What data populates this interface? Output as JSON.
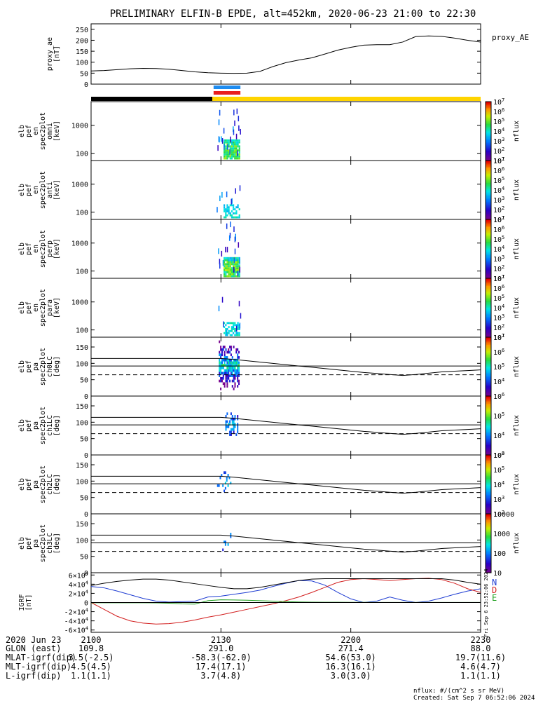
{
  "title": "PRELIMINARY ELFIN-B EPDE, alt=452km, 2020-06-23 21:00 to 22:30",
  "colors": {
    "axis": "#000000",
    "ae_line": "#000000",
    "bar_black": "#000000",
    "bar_yellow": "#ffd400",
    "science_blue": "#1e8cf0",
    "science_red": "#e8201e",
    "grf_n": "#1e3cd2",
    "grf_d": "#d21e1e",
    "grf_e": "#1ea01e",
    "grf_total": "#000000"
  },
  "chart_data": [
    {
      "id": "proxy_ae",
      "type": "line",
      "ylabel_lines": [
        "proxy_ae",
        "[nT]"
      ],
      "legend": "proxy_AE",
      "ylim": [
        0,
        275
      ],
      "yticks": [
        "0",
        "50",
        "100",
        "150",
        "200",
        "250"
      ],
      "x": [
        0,
        3,
        6,
        9,
        12,
        15,
        18,
        21,
        24,
        27,
        30,
        33,
        36,
        39,
        42,
        45,
        48,
        51,
        54,
        57,
        60,
        63,
        66,
        69,
        72,
        75,
        78,
        81,
        84,
        87,
        90
      ],
      "values": [
        60,
        62,
        66,
        70,
        72,
        71,
        68,
        62,
        56,
        52,
        50,
        49,
        50,
        58,
        80,
        98,
        110,
        120,
        137,
        155,
        168,
        178,
        180,
        180,
        192,
        217,
        220,
        218,
        210,
        200,
        192
      ]
    },
    {
      "id": "orbit_bar",
      "type": "bar",
      "segments": [
        {
          "name": "night",
          "start": 0,
          "end": 28,
          "color": "#000000"
        },
        {
          "name": "day",
          "start": 28,
          "end": 90,
          "color": "#ffd400"
        }
      ],
      "science_zone": {
        "start": 28.3,
        "end": 34.5
      }
    },
    {
      "id": "pef_en_omni",
      "type": "heatmap",
      "ylabel_lines": [
        "elb",
        "pef",
        "en",
        "spec2plot",
        "omni",
        "[keV]"
      ],
      "yscale": "log",
      "ylim": [
        55,
        7000
      ],
      "yticks": [
        "100",
        "1000"
      ],
      "colorbar": {
        "label": "nflux",
        "scale": "log",
        "range": [
          10,
          10000000
        ],
        "ticks": [
          "10^1",
          "10^2",
          "10^3",
          "10^4",
          "10^5",
          "10^6",
          "10^7"
        ]
      }
    },
    {
      "id": "pef_en_anti",
      "type": "heatmap",
      "ylabel_lines": [
        "elb",
        "pef",
        "en",
        "spec2plot",
        "anti",
        "[keV]"
      ],
      "yscale": "log",
      "ylim": [
        55,
        7000
      ],
      "yticks": [
        "100",
        "1000"
      ],
      "colorbar": {
        "label": "nflux",
        "scale": "log",
        "range": [
          10,
          10000000
        ],
        "ticks": [
          "10^1",
          "10^2",
          "10^3",
          "10^4",
          "10^5",
          "10^6",
          "10^7"
        ]
      }
    },
    {
      "id": "pef_en_perp",
      "type": "heatmap",
      "ylabel_lines": [
        "elb",
        "pef",
        "en",
        "spec2plot",
        "perp",
        "[keV]"
      ],
      "yscale": "log",
      "ylim": [
        55,
        7000
      ],
      "yticks": [
        "100",
        "1000"
      ],
      "colorbar": {
        "label": "nflux",
        "scale": "log",
        "range": [
          10,
          10000000
        ],
        "ticks": [
          "10^1",
          "10^2",
          "10^3",
          "10^4",
          "10^5",
          "10^6",
          "10^7"
        ]
      }
    },
    {
      "id": "pef_en_para",
      "type": "heatmap",
      "ylabel_lines": [
        "elb",
        "pef",
        "en",
        "spec2plot",
        "para",
        "[keV]"
      ],
      "yscale": "log",
      "ylim": [
        55,
        7000
      ],
      "yticks": [
        "100",
        "1000"
      ],
      "colorbar": {
        "label": "nflux",
        "scale": "log",
        "range": [
          10,
          10000000
        ],
        "ticks": [
          "10^1",
          "10^2",
          "10^3",
          "10^4",
          "10^5",
          "10^6",
          "10^7"
        ]
      }
    },
    {
      "id": "pef_pa_ch0",
      "type": "heatmap",
      "ylabel_lines": [
        "elb",
        "pef",
        "pa",
        "spec2plot",
        "ch0LC",
        "[deg]"
      ],
      "ylim": [
        0,
        180
      ],
      "yticks": [
        "0",
        "50",
        "100",
        "150"
      ],
      "colorbar": {
        "label": "nflux",
        "scale": "log",
        "range": [
          1000,
          10000000
        ],
        "ticks": [
          "10^4",
          "10^5",
          "10^6",
          "10^7"
        ]
      }
    },
    {
      "id": "pef_pa_ch1",
      "type": "heatmap",
      "ylabel_lines": [
        "elb",
        "pef",
        "pa",
        "spec2plot",
        "ch1LC",
        "[deg]"
      ],
      "ylim": [
        0,
        180
      ],
      "yticks": [
        "0",
        "50",
        "100",
        "150"
      ],
      "colorbar": {
        "label": "nflux",
        "scale": "log",
        "range": [
          1000,
          1000000
        ],
        "ticks": [
          "10^3",
          "10^4",
          "10^5",
          "10^6"
        ]
      }
    },
    {
      "id": "pef_pa_ch2",
      "type": "heatmap",
      "ylabel_lines": [
        "elb",
        "pef",
        "pa",
        "spec2plot",
        "ch2LC",
        "[deg]"
      ],
      "ylim": [
        0,
        180
      ],
      "yticks": [
        "0",
        "50",
        "100",
        "150"
      ],
      "colorbar": {
        "label": "nflux",
        "scale": "log",
        "range": [
          100,
          1000000
        ],
        "ticks": [
          "10^2",
          "10^3",
          "10^4",
          "10^5",
          "10^6"
        ]
      }
    },
    {
      "id": "pef_pa_ch3",
      "type": "heatmap",
      "ylabel_lines": [
        "elb",
        "pef",
        "pa",
        "spec2plot",
        "ch3LC",
        "[deg]"
      ],
      "ylim": [
        0,
        180
      ],
      "yticks": [
        "0",
        "50",
        "100",
        "150"
      ],
      "colorbar": {
        "label": "nflux",
        "scale": "log",
        "range": [
          10,
          10000
        ],
        "ticks": [
          "10",
          "100",
          "1000",
          "10000"
        ]
      }
    },
    {
      "id": "igrf",
      "type": "line",
      "ylabel_lines": [
        "IGRF",
        "[nT]"
      ],
      "ylim": [
        -65000,
        65000
      ],
      "yticks": [
        "-6x10^4",
        "-4x10^4",
        "-2x10^4",
        "0",
        "2x10^4",
        "4x10^4",
        "6x10^4"
      ],
      "x": [
        0,
        3,
        6,
        9,
        12,
        15,
        18,
        21,
        24,
        27,
        30,
        33,
        36,
        39,
        42,
        45,
        48,
        51,
        54,
        57,
        60,
        63,
        66,
        69,
        72,
        75,
        78,
        81,
        84,
        87,
        90
      ],
      "series": [
        {
          "name": "N",
          "values": [
            35000,
            32000,
            25000,
            17000,
            9000,
            3000,
            1000,
            2000,
            3000,
            12000,
            14000,
            18000,
            22000,
            27000,
            35000,
            42000,
            48000,
            47000,
            38000,
            22000,
            8000,
            0,
            3000,
            12000,
            5000,
            0,
            3000,
            10000,
            18000,
            25000,
            30000
          ]
        },
        {
          "name": "D",
          "values": [
            0,
            -15000,
            -30000,
            -40000,
            -45000,
            -47000,
            -46000,
            -43000,
            -38000,
            -32000,
            -27000,
            -21000,
            -15000,
            -9000,
            -3000,
            4000,
            12000,
            22000,
            33000,
            44000,
            50000,
            52000,
            50000,
            48000,
            50000,
            52000,
            53000,
            50000,
            42000,
            30000,
            22000
          ]
        },
        {
          "name": "E",
          "values": [
            -500,
            -500,
            -500,
            -500,
            -600,
            -800,
            -1500,
            -3000,
            -3500,
            4000,
            6000,
            5500,
            5000,
            4000,
            3000,
            2000,
            1200,
            800,
            600,
            500,
            400,
            300,
            200,
            150,
            100,
            100,
            100,
            100,
            100,
            100,
            100
          ]
        },
        {
          "name": "total",
          "values": [
            37000,
            42000,
            46000,
            49000,
            51000,
            51000,
            49000,
            45000,
            41000,
            37000,
            33000,
            30000,
            30000,
            33000,
            38000,
            43000,
            48000,
            51000,
            52000,
            52000,
            52000,
            52000,
            52000,
            52000,
            52000,
            52000,
            52000,
            52000,
            49000,
            44000,
            40000
          ]
        }
      ]
    }
  ],
  "xaxis": {
    "date": "2020 Jun 23",
    "ticks": [
      {
        "time": "2100",
        "glon": "109.8",
        "mlat": "3.5(-2.5)",
        "mlt": "4.5(4.5)",
        "l": "1.1(1.1)"
      },
      {
        "time": "2130",
        "glon": "291.0",
        "mlat": "-58.3(-62.0)",
        "mlt": "17.4(17.1)",
        "l": "3.7(4.8)"
      },
      {
        "time": "2200",
        "glon": "271.4",
        "mlat": "54.6(53.0)",
        "mlt": "16.3(16.1)",
        "l": "3.0(3.0)"
      },
      {
        "time": "2230",
        "glon": "88.0",
        "mlat": "19.7(11.6)",
        "mlt": "4.6(4.7)",
        "l": "1.1(1.1)"
      }
    ],
    "row_labels": [
      "GLON (east)",
      "MLAT-igrf(dip)",
      "MLT-igrf(dip)",
      "L-igrf(dip)"
    ]
  },
  "footer": {
    "units": "nflux: #/(cm^2 s sr MeV)",
    "created": "Created: Sat Sep  7 06:52:06 2024",
    "side_stamp": "Fri Sep  6 23:52:06 2024"
  }
}
